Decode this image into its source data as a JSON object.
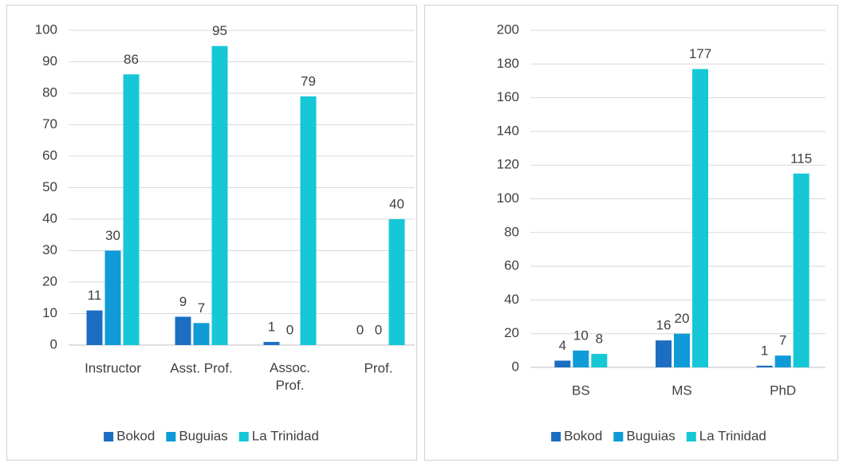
{
  "chart_data": [
    {
      "type": "bar",
      "categories": [
        "Instructor",
        "Asst. Prof.",
        "Assoc. Prof.",
        "Prof."
      ],
      "series": [
        {
          "name": "Bokod",
          "color": "#1b6ec2",
          "values": [
            11,
            9,
            1,
            0
          ]
        },
        {
          "name": "Buguias",
          "color": "#0f9bd7",
          "values": [
            30,
            7,
            0,
            0
          ]
        },
        {
          "name": "La Trinidad",
          "color": "#16c7d6",
          "values": [
            86,
            95,
            79,
            40
          ]
        }
      ],
      "ylim": [
        0,
        100
      ],
      "yticks": [
        0,
        10,
        20,
        30,
        40,
        50,
        60,
        70,
        80,
        90,
        100
      ],
      "grid": true,
      "legend": "bottom"
    },
    {
      "type": "bar",
      "categories": [
        "BS",
        "MS",
        "PhD"
      ],
      "series": [
        {
          "name": "Bokod",
          "color": "#1b6ec2",
          "values": [
            4,
            16,
            1
          ]
        },
        {
          "name": "Buguias",
          "color": "#0f9bd7",
          "values": [
            10,
            20,
            7
          ]
        },
        {
          "name": "La Trinidad",
          "color": "#16c7d6",
          "values": [
            8,
            177,
            115
          ]
        }
      ],
      "ylim": [
        0,
        200
      ],
      "yticks": [
        0,
        20,
        40,
        60,
        80,
        100,
        120,
        140,
        160,
        180,
        200
      ],
      "grid": true,
      "legend": "bottom"
    }
  ]
}
